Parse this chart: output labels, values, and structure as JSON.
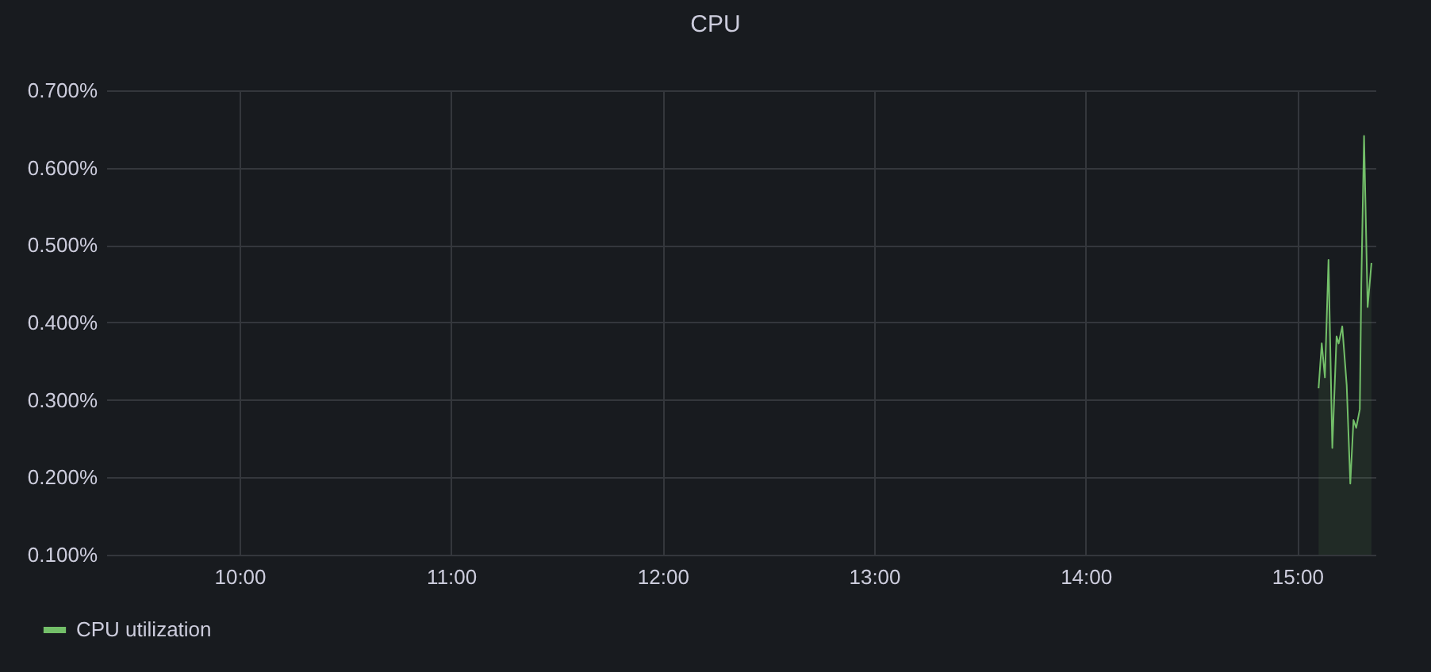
{
  "chart_data": {
    "type": "area",
    "title": "CPU",
    "x": [
      15.101,
      15.116,
      15.131,
      15.148,
      15.166,
      15.186,
      15.196,
      15.213,
      15.234,
      15.251,
      15.266,
      15.279,
      15.296,
      15.303,
      15.316,
      15.333,
      15.351
    ],
    "series": [
      {
        "name": "CPU utilization",
        "color": "#73bf69",
        "values": [
          0.315,
          0.373,
          0.329,
          0.481,
          0.238,
          0.382,
          0.373,
          0.395,
          0.319,
          0.192,
          0.274,
          0.264,
          0.288,
          0.449,
          0.641,
          0.42,
          0.477
        ]
      }
    ],
    "xlim": [
      9.37,
      15.37
    ],
    "xticks": [
      {
        "value": 10,
        "label": "10:00"
      },
      {
        "value": 11,
        "label": "11:00"
      },
      {
        "value": 12,
        "label": "12:00"
      },
      {
        "value": 13,
        "label": "13:00"
      },
      {
        "value": 14,
        "label": "14:00"
      },
      {
        "value": 15,
        "label": "15:00"
      }
    ],
    "ylim": [
      0.1,
      0.7
    ],
    "yticks": [
      {
        "value": 0.1,
        "label": "0.100%"
      },
      {
        "value": 0.2,
        "label": "0.200%"
      },
      {
        "value": 0.3,
        "label": "0.300%"
      },
      {
        "value": 0.4,
        "label": "0.400%"
      },
      {
        "value": 0.5,
        "label": "0.500%"
      },
      {
        "value": 0.6,
        "label": "0.600%"
      },
      {
        "value": 0.7,
        "label": "0.700%"
      }
    ],
    "grid": true,
    "legend": "bottom left"
  }
}
